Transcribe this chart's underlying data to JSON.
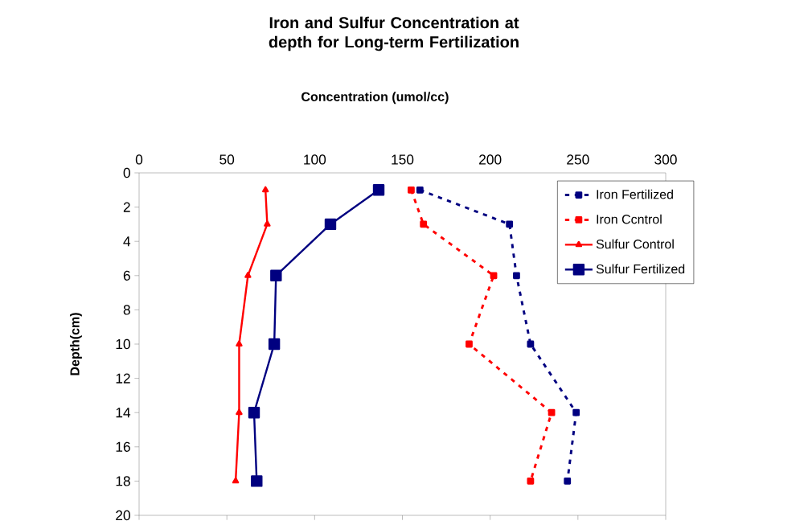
{
  "chart_data": {
    "type": "line",
    "title": "Iron and Sulfur Concentration at depth for Long-term Fertilization",
    "xlabel": "Concentration (umol/cc)",
    "ylabel": "Depth(cm)",
    "xlim": [
      0,
      300
    ],
    "xticks": [
      0,
      50,
      100,
      150,
      200,
      250,
      300
    ],
    "ylim": [
      20,
      0
    ],
    "yticks": [
      0,
      2,
      4,
      6,
      8,
      10,
      12,
      14,
      16,
      18,
      20
    ],
    "grid": false,
    "legend": "right",
    "series": [
      {
        "name": "Iron Fertilized",
        "color": "#000080",
        "line_style": "dashed",
        "marker": "square",
        "x": [
          160,
          211,
          215,
          223,
          249,
          244
        ],
        "values": [
          1,
          3,
          6,
          10,
          14,
          18
        ]
      },
      {
        "name": "Iron Ccntrol",
        "color": "#ff0000",
        "line_style": "dashed",
        "marker": "square",
        "x": [
          155,
          162,
          202,
          188,
          235,
          223
        ],
        "values": [
          1,
          3,
          6,
          10,
          14,
          18
        ]
      },
      {
        "name": "Sulfur Control",
        "color": "#ff0000",
        "line_style": "solid",
        "marker": "triangle",
        "x": [
          72,
          73,
          62,
          57,
          57,
          55
        ],
        "values": [
          1,
          3,
          6,
          10,
          14,
          18
        ]
      },
      {
        "name": "Sulfur Fertilized",
        "color": "#000080",
        "line_style": "solid",
        "marker": "square",
        "x": [
          136.5,
          109,
          78,
          77,
          65.5,
          67
        ],
        "values": [
          1,
          3,
          6,
          10,
          14,
          18
        ]
      }
    ]
  }
}
